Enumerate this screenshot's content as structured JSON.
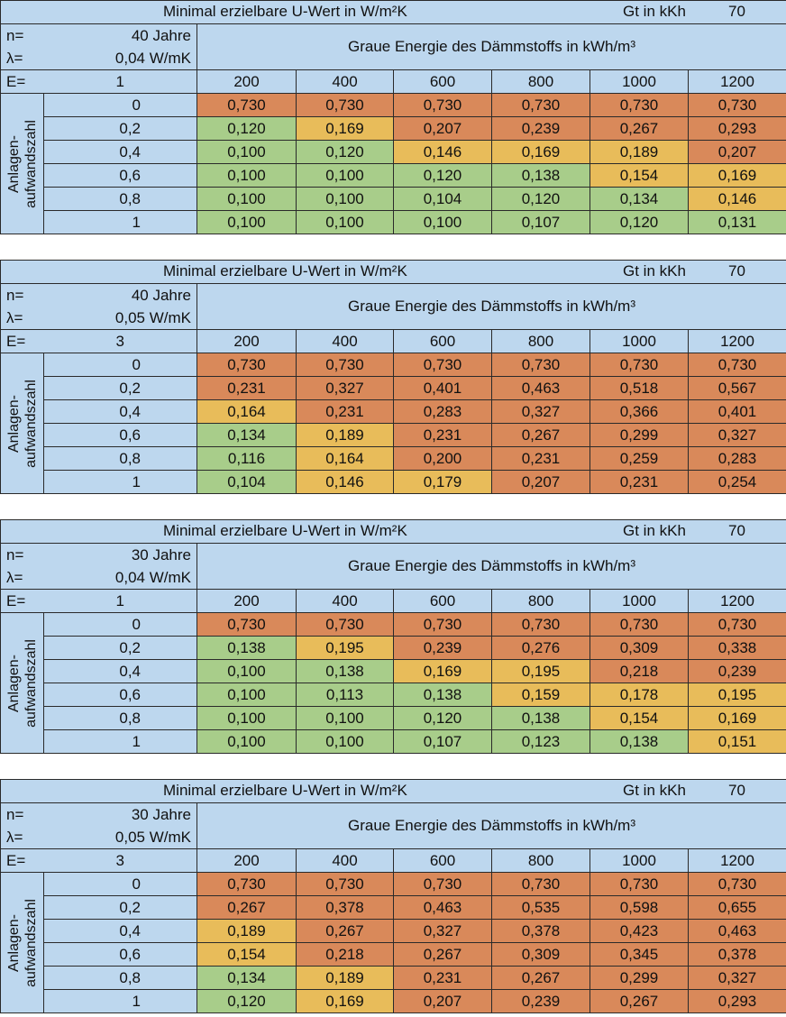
{
  "common": {
    "title": "Minimal erzielbare U-Wert in W/m²K",
    "gt_label": "Gt in kKh",
    "gt_value": "70",
    "group_header": "Graue Energie des Dämmstoffs in kWh/m³",
    "n_label": "n=",
    "lambda_label": "λ=",
    "e_label": "E=",
    "row_axis_label_line1": "Anlagen-",
    "row_axis_label_line2": "aufwandszahl",
    "columns": [
      "200",
      "400",
      "600",
      "800",
      "1000",
      "1200"
    ],
    "row_keys": [
      "0",
      "0,2",
      "0,4",
      "0,6",
      "0,8",
      "1"
    ]
  },
  "colors": {
    "header_bg": "#bdd7ee",
    "orange": "#d9895a",
    "yellow": "#e8bc5a",
    "green": "#a8cd8a",
    "border": "#2a2a2a"
  },
  "tables": [
    {
      "n": "40 Jahre",
      "lambda": "0,04 W/mK",
      "e": "1",
      "rows": [
        {
          "key": "0",
          "values": [
            "0,730",
            "0,730",
            "0,730",
            "0,730",
            "0,730",
            "0,730"
          ],
          "colors": [
            "o",
            "o",
            "o",
            "o",
            "o",
            "o"
          ]
        },
        {
          "key": "0,2",
          "values": [
            "0,120",
            "0,169",
            "0,207",
            "0,239",
            "0,267",
            "0,293"
          ],
          "colors": [
            "g",
            "y",
            "o",
            "o",
            "o",
            "o"
          ]
        },
        {
          "key": "0,4",
          "values": [
            "0,100",
            "0,120",
            "0,146",
            "0,169",
            "0,189",
            "0,207"
          ],
          "colors": [
            "g",
            "g",
            "y",
            "y",
            "y",
            "o"
          ]
        },
        {
          "key": "0,6",
          "values": [
            "0,100",
            "0,100",
            "0,120",
            "0,138",
            "0,154",
            "0,169"
          ],
          "colors": [
            "g",
            "g",
            "g",
            "g",
            "y",
            "y"
          ]
        },
        {
          "key": "0,8",
          "values": [
            "0,100",
            "0,100",
            "0,104",
            "0,120",
            "0,134",
            "0,146"
          ],
          "colors": [
            "g",
            "g",
            "g",
            "g",
            "g",
            "y"
          ]
        },
        {
          "key": "1",
          "values": [
            "0,100",
            "0,100",
            "0,100",
            "0,107",
            "0,120",
            "0,131"
          ],
          "colors": [
            "g",
            "g",
            "g",
            "g",
            "g",
            "g"
          ]
        }
      ]
    },
    {
      "n": "40 Jahre",
      "lambda": "0,05 W/mK",
      "e": "3",
      "rows": [
        {
          "key": "0",
          "values": [
            "0,730",
            "0,730",
            "0,730",
            "0,730",
            "0,730",
            "0,730"
          ],
          "colors": [
            "o",
            "o",
            "o",
            "o",
            "o",
            "o"
          ]
        },
        {
          "key": "0,2",
          "values": [
            "0,231",
            "0,327",
            "0,401",
            "0,463",
            "0,518",
            "0,567"
          ],
          "colors": [
            "o",
            "o",
            "o",
            "o",
            "o",
            "o"
          ]
        },
        {
          "key": "0,4",
          "values": [
            "0,164",
            "0,231",
            "0,283",
            "0,327",
            "0,366",
            "0,401"
          ],
          "colors": [
            "y",
            "o",
            "o",
            "o",
            "o",
            "o"
          ]
        },
        {
          "key": "0,6",
          "values": [
            "0,134",
            "0,189",
            "0,231",
            "0,267",
            "0,299",
            "0,327"
          ],
          "colors": [
            "g",
            "y",
            "o",
            "o",
            "o",
            "o"
          ]
        },
        {
          "key": "0,8",
          "values": [
            "0,116",
            "0,164",
            "0,200",
            "0,231",
            "0,259",
            "0,283"
          ],
          "colors": [
            "g",
            "y",
            "o",
            "o",
            "o",
            "o"
          ]
        },
        {
          "key": "1",
          "values": [
            "0,104",
            "0,146",
            "0,179",
            "0,207",
            "0,231",
            "0,254"
          ],
          "colors": [
            "g",
            "y",
            "y",
            "o",
            "o",
            "o"
          ]
        }
      ]
    },
    {
      "n": "30 Jahre",
      "lambda": "0,04 W/mK",
      "e": "1",
      "rows": [
        {
          "key": "0",
          "values": [
            "0,730",
            "0,730",
            "0,730",
            "0,730",
            "0,730",
            "0,730"
          ],
          "colors": [
            "o",
            "o",
            "o",
            "o",
            "o",
            "o"
          ]
        },
        {
          "key": "0,2",
          "values": [
            "0,138",
            "0,195",
            "0,239",
            "0,276",
            "0,309",
            "0,338"
          ],
          "colors": [
            "g",
            "y",
            "o",
            "o",
            "o",
            "o"
          ]
        },
        {
          "key": "0,4",
          "values": [
            "0,100",
            "0,138",
            "0,169",
            "0,195",
            "0,218",
            "0,239"
          ],
          "colors": [
            "g",
            "g",
            "y",
            "y",
            "o",
            "o"
          ]
        },
        {
          "key": "0,6",
          "values": [
            "0,100",
            "0,113",
            "0,138",
            "0,159",
            "0,178",
            "0,195"
          ],
          "colors": [
            "g",
            "g",
            "g",
            "y",
            "y",
            "y"
          ]
        },
        {
          "key": "0,8",
          "values": [
            "0,100",
            "0,100",
            "0,120",
            "0,138",
            "0,154",
            "0,169"
          ],
          "colors": [
            "g",
            "g",
            "g",
            "g",
            "y",
            "y"
          ]
        },
        {
          "key": "1",
          "values": [
            "0,100",
            "0,100",
            "0,107",
            "0,123",
            "0,138",
            "0,151"
          ],
          "colors": [
            "g",
            "g",
            "g",
            "g",
            "g",
            "y"
          ]
        }
      ]
    },
    {
      "n": "30 Jahre",
      "lambda": "0,05 W/mK",
      "e": "3",
      "rows": [
        {
          "key": "0",
          "values": [
            "0,730",
            "0,730",
            "0,730",
            "0,730",
            "0,730",
            "0,730"
          ],
          "colors": [
            "o",
            "o",
            "o",
            "o",
            "o",
            "o"
          ]
        },
        {
          "key": "0,2",
          "values": [
            "0,267",
            "0,378",
            "0,463",
            "0,535",
            "0,598",
            "0,655"
          ],
          "colors": [
            "o",
            "o",
            "o",
            "o",
            "o",
            "o"
          ]
        },
        {
          "key": "0,4",
          "values": [
            "0,189",
            "0,267",
            "0,327",
            "0,378",
            "0,423",
            "0,463"
          ],
          "colors": [
            "y",
            "o",
            "o",
            "o",
            "o",
            "o"
          ]
        },
        {
          "key": "0,6",
          "values": [
            "0,154",
            "0,218",
            "0,267",
            "0,309",
            "0,345",
            "0,378"
          ],
          "colors": [
            "y",
            "o",
            "o",
            "o",
            "o",
            "o"
          ]
        },
        {
          "key": "0,8",
          "values": [
            "0,134",
            "0,189",
            "0,231",
            "0,267",
            "0,299",
            "0,327"
          ],
          "colors": [
            "g",
            "y",
            "o",
            "o",
            "o",
            "o"
          ]
        },
        {
          "key": "1",
          "values": [
            "0,120",
            "0,169",
            "0,207",
            "0,239",
            "0,267",
            "0,293"
          ],
          "colors": [
            "g",
            "y",
            "o",
            "o",
            "o",
            "o"
          ]
        }
      ]
    }
  ]
}
